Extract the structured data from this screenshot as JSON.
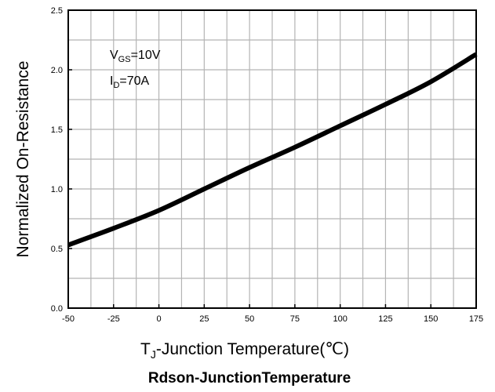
{
  "chart_data": {
    "type": "line",
    "title": "Rdson-JunctionTemperature",
    "xlabel": {
      "prefix": "T",
      "sub": "J",
      "rest": "-Junction Temperature(℃)"
    },
    "ylabel": "Normalized On-Resistance",
    "xlim": [
      -50,
      175
    ],
    "ylim": [
      0,
      2.5
    ],
    "xticks": [
      "-50",
      "-25",
      "0",
      "25",
      "50",
      "75",
      "100",
      "125",
      "150",
      "175"
    ],
    "yticks": [
      "0.0",
      "0.5",
      "1.0",
      "1.5",
      "2.0",
      "2.5"
    ],
    "grid": true,
    "annotations": [
      {
        "main": "V",
        "sub": "GS",
        "rest": "=10V"
      },
      {
        "main": "I",
        "sub": "D",
        "rest": "=70A"
      }
    ],
    "series": [
      {
        "color": "#000000",
        "x": [
          -50,
          -25,
          0,
          25,
          50,
          75,
          100,
          125,
          150,
          175
        ],
        "y": [
          0.53,
          0.67,
          0.82,
          1.0,
          1.18,
          1.35,
          1.53,
          1.71,
          1.9,
          2.13
        ]
      }
    ]
  }
}
